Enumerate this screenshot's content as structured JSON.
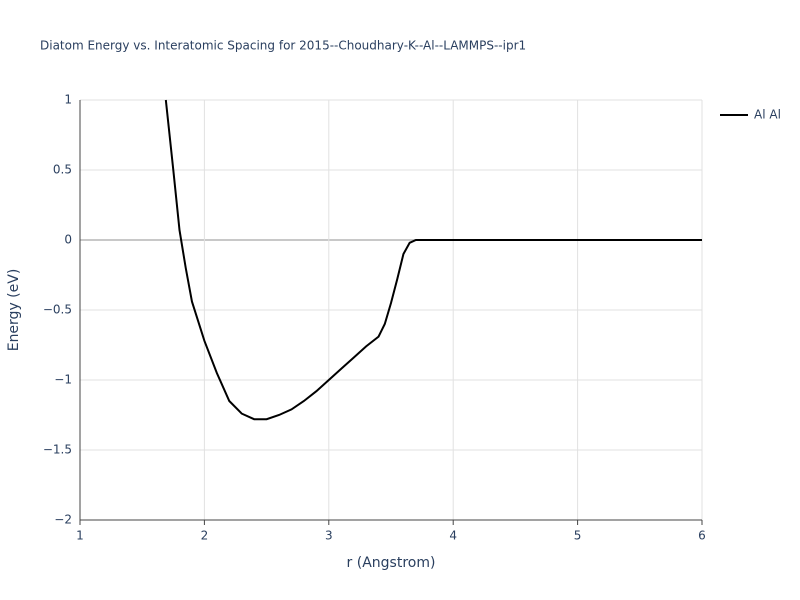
{
  "chart_data": {
    "type": "line",
    "title": "Diatom Energy vs. Interatomic Spacing for 2015--Choudhary-K--Al--LAMMPS--ipr1",
    "x_label": "r (Angstrom)",
    "y_label": "Energy (eV)",
    "x": [
      1.69,
      1.75,
      1.8,
      1.85,
      1.9,
      2.0,
      2.1,
      2.2,
      2.3,
      2.4,
      2.5,
      2.6,
      2.7,
      2.8,
      2.9,
      3.0,
      3.1,
      3.2,
      3.3,
      3.4,
      3.45,
      3.5,
      3.55,
      3.6,
      3.65,
      3.7,
      6
    ],
    "series": [
      {
        "name": "Al Al",
        "color": "#000000",
        "values": [
          1.0,
          0.5,
          0.07,
          -0.2,
          -0.44,
          -0.72,
          -0.95,
          -1.15,
          -1.24,
          -1.28,
          -1.28,
          -1.25,
          -1.21,
          -1.15,
          -1.08,
          -1.0,
          -0.92,
          -0.84,
          -0.76,
          -0.69,
          -0.6,
          -0.45,
          -0.28,
          -0.1,
          -0.02,
          0,
          0
        ]
      }
    ],
    "xlim": [
      1,
      6
    ],
    "xticks": [
      1,
      2,
      3,
      4,
      5,
      6
    ],
    "ylim": [
      -2,
      1
    ],
    "yticks": [
      {
        "value": -2,
        "label": "−2"
      },
      {
        "value": -1.5,
        "label": "−1.5"
      },
      {
        "value": -1,
        "label": "−1"
      },
      {
        "value": -0.5,
        "label": "−0.5"
      },
      0,
      0.5,
      1
    ],
    "grid": true,
    "legend": "right"
  }
}
